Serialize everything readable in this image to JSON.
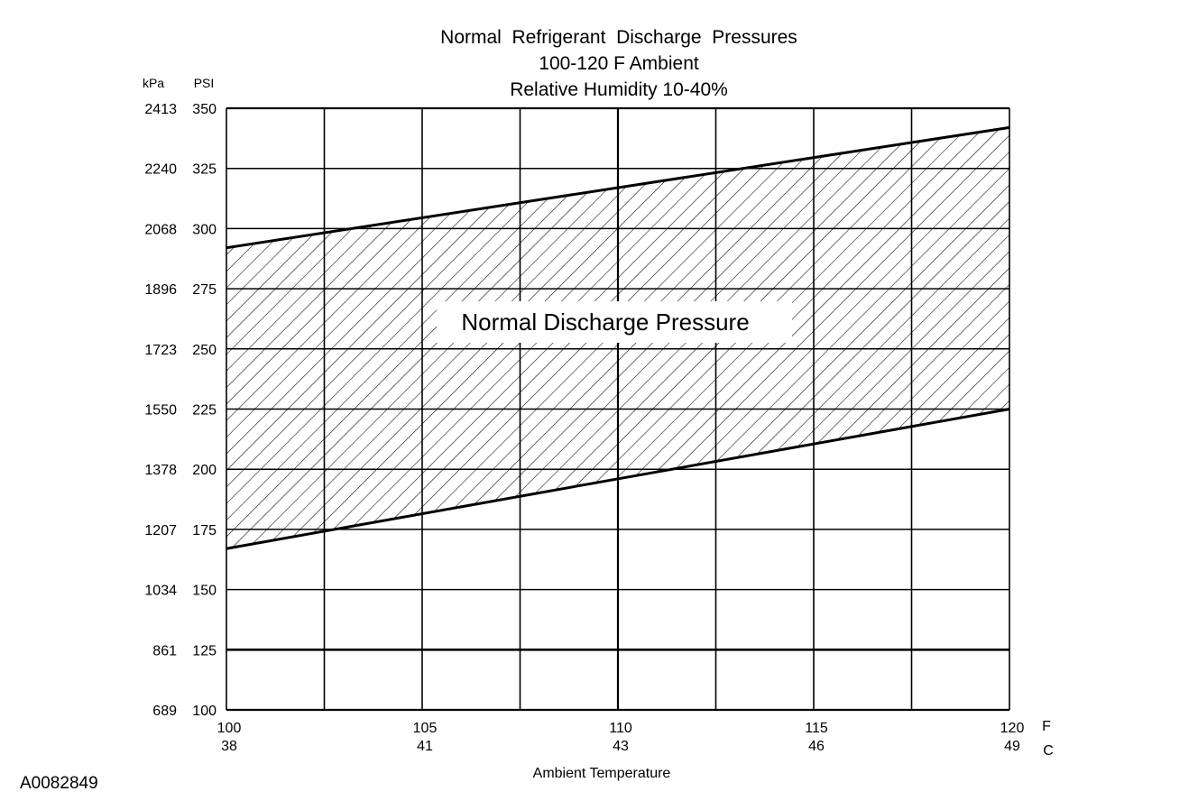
{
  "chart_data": {
    "type": "area",
    "title_lines": [
      "Normal  Refrigerant  Discharge  Pressures",
      "100-120 F Ambient",
      "Relative Humidity 10-40%"
    ],
    "xlabel": "Ambient Temperature",
    "x_unit_primary": "F",
    "x_unit_secondary": "C",
    "y_unit_primary": "PSI",
    "y_unit_secondary": "kPa",
    "xlim": [
      100,
      120
    ],
    "ylim": [
      100,
      350
    ],
    "x_ticks": [
      100,
      105,
      110,
      115,
      120
    ],
    "x_ticks_secondary": [
      "38",
      "41",
      "43",
      "46",
      "49"
    ],
    "y_ticks": [
      100,
      125,
      150,
      175,
      200,
      225,
      250,
      275,
      300,
      325,
      350
    ],
    "y_ticks_secondary": [
      "689",
      "861",
      "1034",
      "1207",
      "1378",
      "1550",
      "1723",
      "1896",
      "2068",
      "2240",
      "2413"
    ],
    "grid": true,
    "series": [
      {
        "name": "Normal Discharge Pressure",
        "x": [
          100,
          120
        ],
        "lower": [
          167,
          225
        ],
        "upper": [
          292,
          342
        ]
      }
    ]
  },
  "figure_id": "A0082849"
}
